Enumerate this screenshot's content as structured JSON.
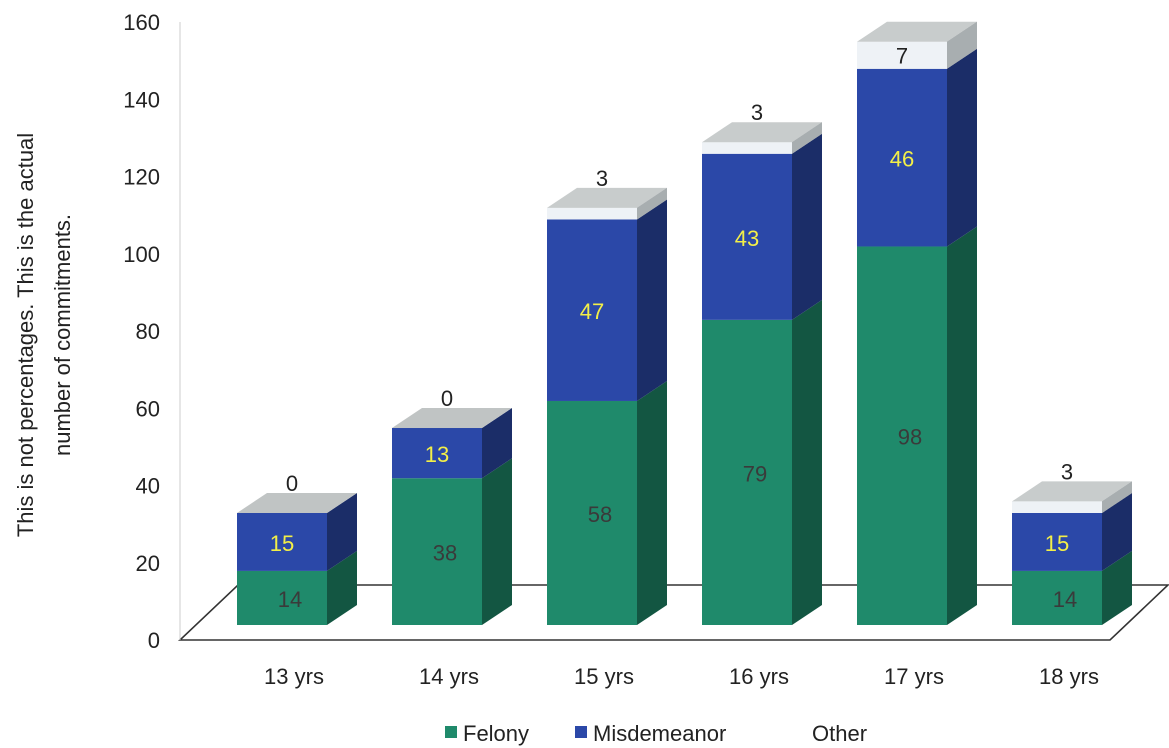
{
  "chart_data": {
    "type": "bar",
    "stacked": true,
    "three_d": true,
    "categories": [
      "13 yrs",
      "14 yrs",
      "15 yrs",
      "16 yrs",
      "17 yrs",
      "18 yrs"
    ],
    "series": [
      {
        "name": "Felony",
        "values": [
          14,
          38,
          58,
          79,
          98,
          14
        ],
        "color": "#1f8a6b",
        "label_color": "#3a3a3a"
      },
      {
        "name": "Misdemeanor",
        "values": [
          15,
          13,
          47,
          43,
          46,
          15
        ],
        "color": "#2b48a8",
        "label_color": "#f3ef48"
      },
      {
        "name": "Other",
        "values": [
          0,
          0,
          3,
          3,
          7,
          3
        ],
        "color": "#eef2f6",
        "label_color": "#222222"
      }
    ],
    "yticks": [
      "0",
      "20",
      "40",
      "60",
      "80",
      "100",
      "120",
      "140",
      "160"
    ],
    "ylim": [
      0,
      160
    ],
    "ylabel_line1": "This is not percentages. This is the actual",
    "ylabel_line2": "number of commitments.",
    "legend": {
      "placement": "bottom",
      "entries": [
        "Felony",
        "Misdemeanor",
        "Other"
      ]
    },
    "grid": false
  }
}
